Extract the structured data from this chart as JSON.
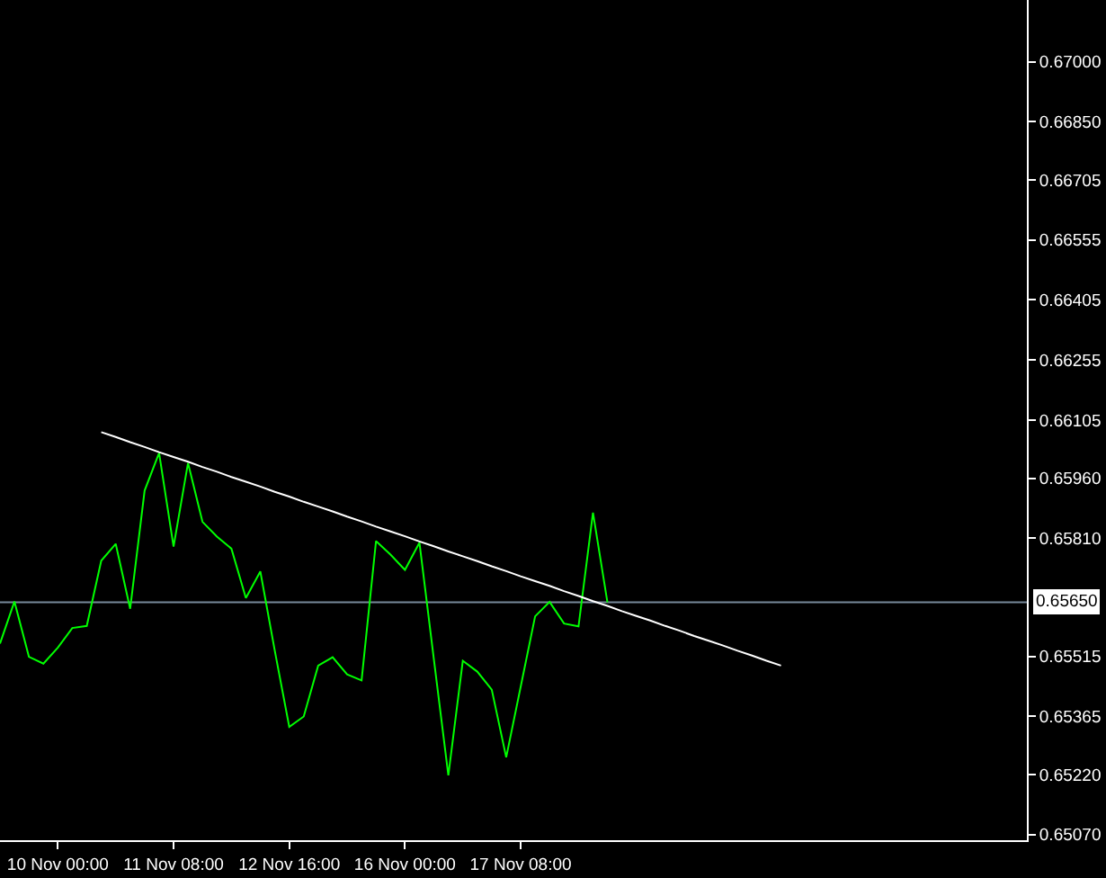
{
  "chart_data": {
    "type": "line",
    "categories": [
      null,
      null,
      null,
      null,
      "10 Nov 00:00",
      null,
      null,
      null,
      null,
      null,
      null,
      null,
      "11 Nov 08:00",
      null,
      null,
      null,
      null,
      null,
      null,
      null,
      "12 Nov 16:00",
      null,
      null,
      null,
      null,
      null,
      null,
      null,
      "16 Nov 00:00",
      null,
      null,
      null,
      null,
      null,
      null,
      null,
      "17 Nov 08:00",
      null,
      null,
      null,
      null,
      null,
      null,
      null,
      null,
      null,
      null,
      null,
      null,
      null,
      null,
      null,
      null,
      null,
      null,
      null,
      null,
      null,
      null,
      null,
      null,
      null,
      null,
      null,
      null,
      null,
      null,
      null,
      null,
      null,
      null,
      null
    ],
    "series": [
      {
        "color": "#00ff00",
        "values": [
          0.65547,
          0.65652,
          0.65514,
          0.65497,
          0.65537,
          0.65586,
          0.65591,
          0.65754,
          0.65796,
          0.65634,
          0.65929,
          0.66023,
          0.65789,
          0.65998,
          0.65851,
          0.65814,
          0.65784,
          0.65661,
          0.65727,
          0.65529,
          0.65339,
          0.65365,
          0.65492,
          0.65513,
          0.6547,
          0.65455,
          0.65803,
          0.65769,
          0.65731,
          0.65799,
          0.65507,
          0.65218,
          0.65504,
          0.65477,
          0.65432,
          0.65263,
          0.65439,
          0.65615,
          0.65651,
          0.65597,
          0.6559,
          0.65874,
          0.6565,
          null,
          null,
          null,
          null,
          null,
          null,
          null,
          null,
          null,
          null,
          null,
          null,
          null,
          null,
          null,
          null,
          null,
          null,
          null,
          null,
          null,
          null,
          null,
          null,
          null,
          null,
          null,
          null,
          null
        ]
      },
      {
        "type": "line",
        "color": "#ffffff",
        "values": [
          null,
          null,
          null,
          null,
          null,
          null,
          null,
          0.66075,
          0.66063,
          0.6605,
          0.66038,
          0.66025,
          0.66013,
          0.66001,
          0.65988,
          0.65976,
          0.65963,
          0.65951,
          0.65939,
          0.65926,
          0.65914,
          0.65901,
          0.65889,
          0.65877,
          0.65864,
          0.65852,
          0.65839,
          0.65827,
          0.65815,
          0.65802,
          0.6579,
          0.65777,
          0.65765,
          0.65753,
          0.6574,
          0.65728,
          0.65715,
          0.65703,
          0.65691,
          0.65678,
          0.65666,
          0.65653,
          0.65641,
          0.65628,
          0.65616,
          0.65604,
          0.65591,
          0.65579,
          0.65566,
          0.65554,
          0.65542,
          0.65529,
          0.65517,
          0.65504,
          0.65492,
          null,
          null,
          null,
          null,
          null,
          null,
          null,
          null,
          null,
          null,
          null,
          null,
          null,
          null,
          null,
          null,
          null
        ]
      }
    ],
    "ylim": [
      0.65056,
      0.67154
    ],
    "yticks": [
      {
        "value": 0.67,
        "label": "0.67000"
      },
      {
        "value": 0.6685,
        "label": "0.66850"
      },
      {
        "value": 0.66705,
        "label": "0.66705"
      },
      {
        "value": 0.66555,
        "label": "0.66555"
      },
      {
        "value": 0.66405,
        "label": "0.66405"
      },
      {
        "value": 0.66255,
        "label": "0.66255"
      },
      {
        "value": 0.66105,
        "label": "0.66105"
      },
      {
        "value": 0.6596,
        "label": "0.65960"
      },
      {
        "value": 0.6581,
        "label": "0.65810"
      },
      {
        "value": 0.65515,
        "label": "0.65515"
      },
      {
        "value": 0.65365,
        "label": "0.65365"
      },
      {
        "value": 0.6522,
        "label": "0.65220"
      },
      {
        "value": 0.6507,
        "label": "0.65070"
      }
    ],
    "ref_lines": [
      {
        "axis": "y",
        "value": 0.6565,
        "label": "0.65650",
        "color": "#778899",
        "line_style": "solid"
      }
    ],
    "grid": false
  }
}
